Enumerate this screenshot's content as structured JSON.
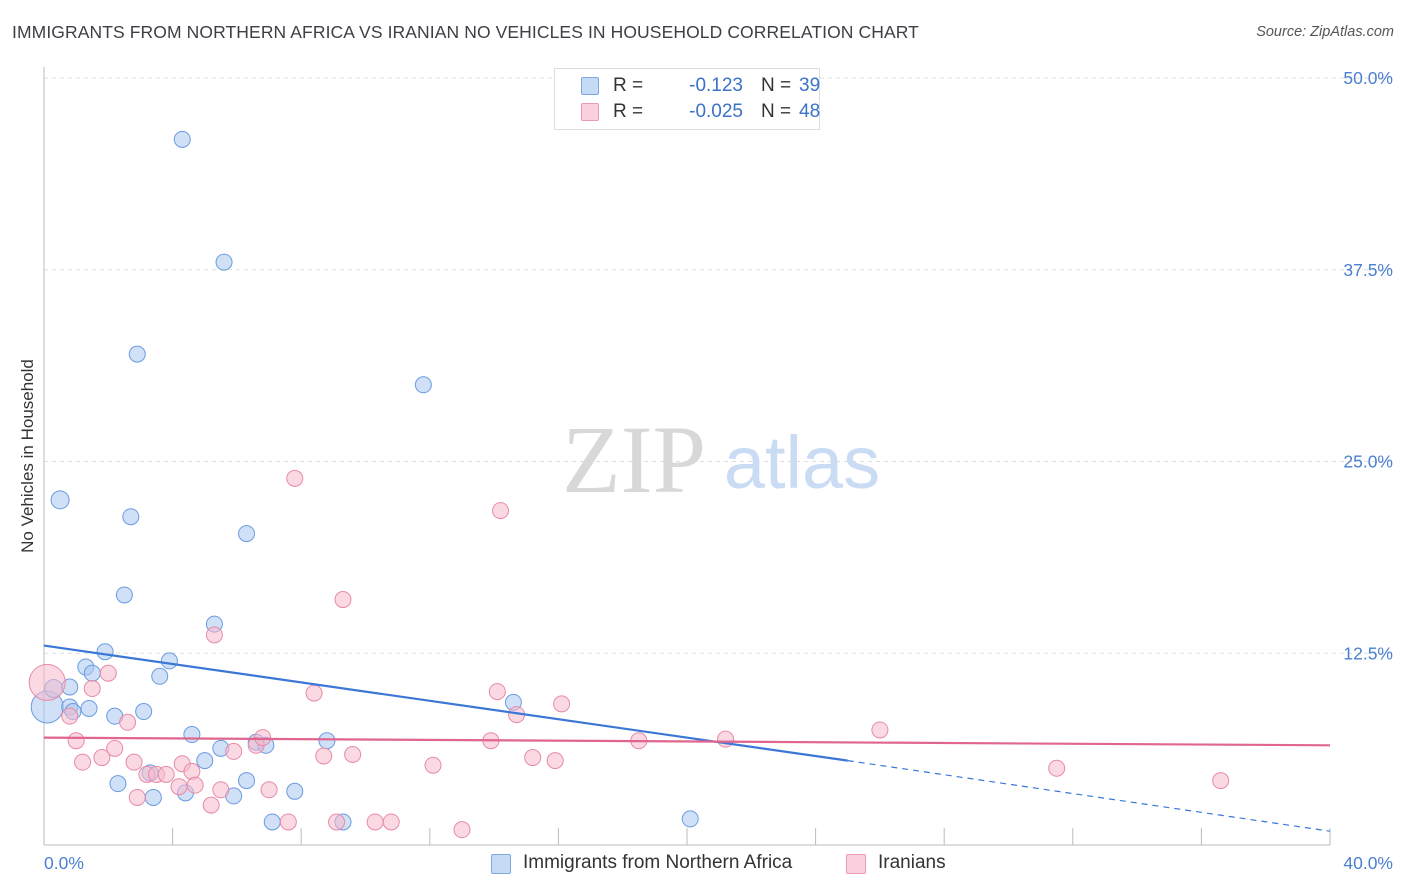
{
  "header": {
    "title": "IMMIGRANTS FROM NORTHERN AFRICA VS IRANIAN NO VEHICLES IN HOUSEHOLD CORRELATION CHART",
    "source": "Source: ZipAtlas.com"
  },
  "watermark": {
    "zip": "ZIP",
    "atlas": "atlas"
  },
  "legend": {
    "rows": [
      {
        "r_label": "R =",
        "r_value": "-0.123",
        "n_label": "N =",
        "n_value": "39"
      },
      {
        "r_label": "R =",
        "r_value": "-0.025",
        "n_label": "N =",
        "n_value": "48"
      }
    ]
  },
  "colors": {
    "blue_fill": "#a9c8f0",
    "blue_stroke": "#6a9be0",
    "blue_line": "#3b77d6",
    "pink_fill": "#f7b9cc",
    "pink_stroke": "#e88aa8",
    "pink_line": "#e0658f",
    "tick_text": "#4a7fd1",
    "grid": "#dddddd"
  },
  "chart_data": {
    "type": "scatter",
    "title": "IMMIGRANTS FROM NORTHERN AFRICA VS IRANIAN NO VEHICLES IN HOUSEHOLD CORRELATION CHART",
    "xlabel": "",
    "ylabel": "No Vehicles in Household",
    "xlim": [
      0,
      40
    ],
    "ylim": [
      0,
      50
    ],
    "x_tick_labels": [
      "0.0%",
      "40.0%"
    ],
    "y_ticks": [
      12.5,
      25.0,
      37.5,
      50.0
    ],
    "y_tick_labels": [
      "12.5%",
      "25.0%",
      "37.5%",
      "50.0%"
    ],
    "grid": "horizontal dashed",
    "legend_position": "top-center",
    "series": [
      {
        "name": "Immigrants from Northern Africa",
        "color": "#a9c8f0",
        "points": [
          [
            0.1,
            9.0,
            16
          ],
          [
            0.3,
            10.2,
            9
          ],
          [
            0.5,
            22.5,
            9
          ],
          [
            0.8,
            10.3,
            8
          ],
          [
            0.8,
            9.0,
            8
          ],
          [
            0.9,
            8.7,
            8
          ],
          [
            1.3,
            11.6,
            8
          ],
          [
            1.4,
            8.9,
            8
          ],
          [
            1.5,
            11.2,
            8
          ],
          [
            1.9,
            12.6,
            8
          ],
          [
            2.2,
            8.4,
            8
          ],
          [
            2.3,
            4.0,
            8
          ],
          [
            2.5,
            16.3,
            8
          ],
          [
            2.7,
            21.4,
            8
          ],
          [
            2.9,
            32.0,
            8
          ],
          [
            3.1,
            8.7,
            8
          ],
          [
            3.3,
            4.7,
            8
          ],
          [
            3.4,
            3.1,
            8
          ],
          [
            3.6,
            11.0,
            8
          ],
          [
            3.9,
            12.0,
            8
          ],
          [
            4.3,
            46.0,
            8
          ],
          [
            4.4,
            3.4,
            8
          ],
          [
            4.6,
            7.2,
            8
          ],
          [
            5.0,
            5.5,
            8
          ],
          [
            5.3,
            14.4,
            8
          ],
          [
            5.5,
            6.3,
            8
          ],
          [
            5.6,
            38.0,
            8
          ],
          [
            5.9,
            3.2,
            8
          ],
          [
            6.3,
            4.2,
            8
          ],
          [
            6.3,
            20.3,
            8
          ],
          [
            6.6,
            6.7,
            8
          ],
          [
            6.9,
            6.5,
            8
          ],
          [
            7.1,
            1.5,
            8
          ],
          [
            7.8,
            3.5,
            8
          ],
          [
            8.8,
            6.8,
            8
          ],
          [
            9.3,
            1.5,
            8
          ],
          [
            11.8,
            30.0,
            8
          ],
          [
            14.6,
            9.3,
            8
          ],
          [
            20.1,
            1.7,
            8
          ]
        ]
      },
      {
        "name": "Iranians",
        "color": "#f7b9cc",
        "points": [
          [
            0.1,
            10.6,
            18
          ],
          [
            0.8,
            8.4,
            8
          ],
          [
            1.0,
            6.8,
            8
          ],
          [
            1.2,
            5.4,
            8
          ],
          [
            1.5,
            10.2,
            8
          ],
          [
            1.8,
            5.7,
            8
          ],
          [
            2.0,
            11.2,
            8
          ],
          [
            2.2,
            6.3,
            8
          ],
          [
            2.6,
            8.0,
            8
          ],
          [
            2.8,
            5.4,
            8
          ],
          [
            2.9,
            3.1,
            8
          ],
          [
            3.2,
            4.6,
            8
          ],
          [
            3.5,
            4.6,
            8
          ],
          [
            3.8,
            4.6,
            8
          ],
          [
            4.2,
            3.8,
            8
          ],
          [
            4.3,
            5.3,
            8
          ],
          [
            4.6,
            4.8,
            8
          ],
          [
            4.7,
            3.9,
            8
          ],
          [
            5.2,
            2.6,
            8
          ],
          [
            5.3,
            13.7,
            8
          ],
          [
            5.5,
            3.6,
            8
          ],
          [
            5.9,
            6.1,
            8
          ],
          [
            6.6,
            6.5,
            8
          ],
          [
            6.8,
            7.0,
            8
          ],
          [
            7.0,
            3.6,
            8
          ],
          [
            7.6,
            1.5,
            8
          ],
          [
            7.8,
            23.9,
            8
          ],
          [
            8.4,
            9.9,
            8
          ],
          [
            8.7,
            5.8,
            8
          ],
          [
            9.1,
            1.5,
            8
          ],
          [
            9.3,
            16.0,
            8
          ],
          [
            9.6,
            5.9,
            8
          ],
          [
            10.3,
            1.5,
            8
          ],
          [
            10.8,
            1.5,
            8
          ],
          [
            12.1,
            5.2,
            8
          ],
          [
            13.0,
            1.0,
            8
          ],
          [
            13.9,
            6.8,
            8
          ],
          [
            14.1,
            10.0,
            8
          ],
          [
            14.2,
            21.8,
            8
          ],
          [
            14.7,
            8.5,
            8
          ],
          [
            15.2,
            5.7,
            8
          ],
          [
            15.9,
            5.5,
            8
          ],
          [
            16.1,
            9.2,
            8
          ],
          [
            18.5,
            6.8,
            8
          ],
          [
            21.2,
            6.9,
            8
          ],
          [
            26.0,
            7.5,
            8
          ],
          [
            31.5,
            5.0,
            8
          ],
          [
            36.6,
            4.2,
            8
          ]
        ]
      }
    ],
    "trendlines": [
      {
        "series": "Immigrants from Northern Africa",
        "x": [
          0,
          25
        ],
        "y": [
          13.0,
          5.5
        ],
        "dashed_to": [
          40,
          0.9
        ]
      },
      {
        "series": "Iranians",
        "x": [
          0,
          40
        ],
        "y": [
          7.0,
          6.5
        ]
      }
    ]
  },
  "bottom_legend": {
    "items": [
      "Immigrants from Northern Africa",
      "Iranians"
    ]
  }
}
